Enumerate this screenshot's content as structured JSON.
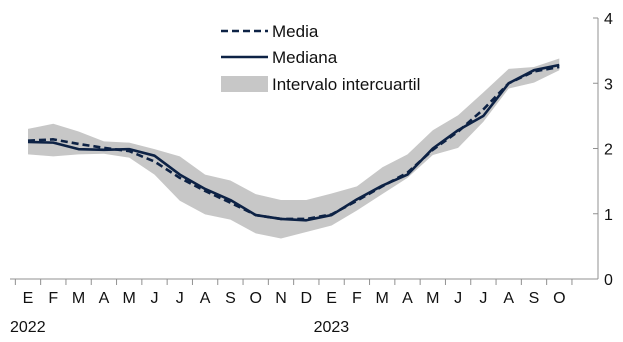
{
  "chart_data": {
    "type": "area",
    "categories": [
      "E",
      "F",
      "M",
      "A",
      "M",
      "J",
      "J",
      "A",
      "S",
      "O",
      "N",
      "D",
      "E",
      "F",
      "M",
      "A",
      "M",
      "J",
      "J",
      "A",
      "S",
      "O"
    ],
    "year_labels": [
      {
        "category_index": 0,
        "label": "2022"
      },
      {
        "category_index": 12,
        "label": "2023"
      }
    ],
    "series": [
      {
        "name": "Media",
        "style": "dashed",
        "values": [
          2.12,
          2.14,
          2.07,
          2.01,
          1.96,
          1.8,
          1.55,
          1.35,
          1.17,
          0.98,
          0.92,
          0.92,
          0.99,
          1.2,
          1.42,
          1.63,
          1.98,
          2.26,
          2.6,
          3.0,
          3.18,
          3.25
        ]
      },
      {
        "name": "Mediana",
        "style": "solid",
        "values": [
          2.1,
          2.09,
          1.99,
          1.98,
          1.99,
          1.89,
          1.6,
          1.38,
          1.21,
          0.98,
          0.92,
          0.9,
          0.98,
          1.22,
          1.43,
          1.6,
          2.0,
          2.28,
          2.5,
          3.0,
          3.2,
          3.28
        ]
      },
      {
        "name": "Intervalo intercuartil",
        "style": "band",
        "low": [
          1.91,
          1.88,
          1.91,
          1.92,
          1.86,
          1.6,
          1.2,
          0.99,
          0.91,
          0.7,
          0.62,
          0.72,
          0.82,
          1.05,
          1.3,
          1.55,
          1.9,
          2.01,
          2.41,
          2.92,
          3.01,
          3.2
        ],
        "high": [
          2.3,
          2.38,
          2.26,
          2.11,
          2.09,
          1.99,
          1.88,
          1.6,
          1.51,
          1.3,
          1.21,
          1.21,
          1.31,
          1.42,
          1.71,
          1.91,
          2.28,
          2.51,
          2.86,
          3.22,
          3.25,
          3.38
        ]
      }
    ],
    "y_axis": {
      "position": "right",
      "ylim": [
        0,
        4
      ],
      "ticks": [
        0,
        1,
        2,
        3,
        4
      ]
    },
    "grid": false,
    "legend": {
      "placement": "top-center",
      "entries": [
        "Media",
        "Mediana",
        "Intervalo intercuartil"
      ]
    },
    "colors": {
      "line": "#0d2245",
      "band": "#c7c7c7",
      "axis": "#909090"
    }
  }
}
